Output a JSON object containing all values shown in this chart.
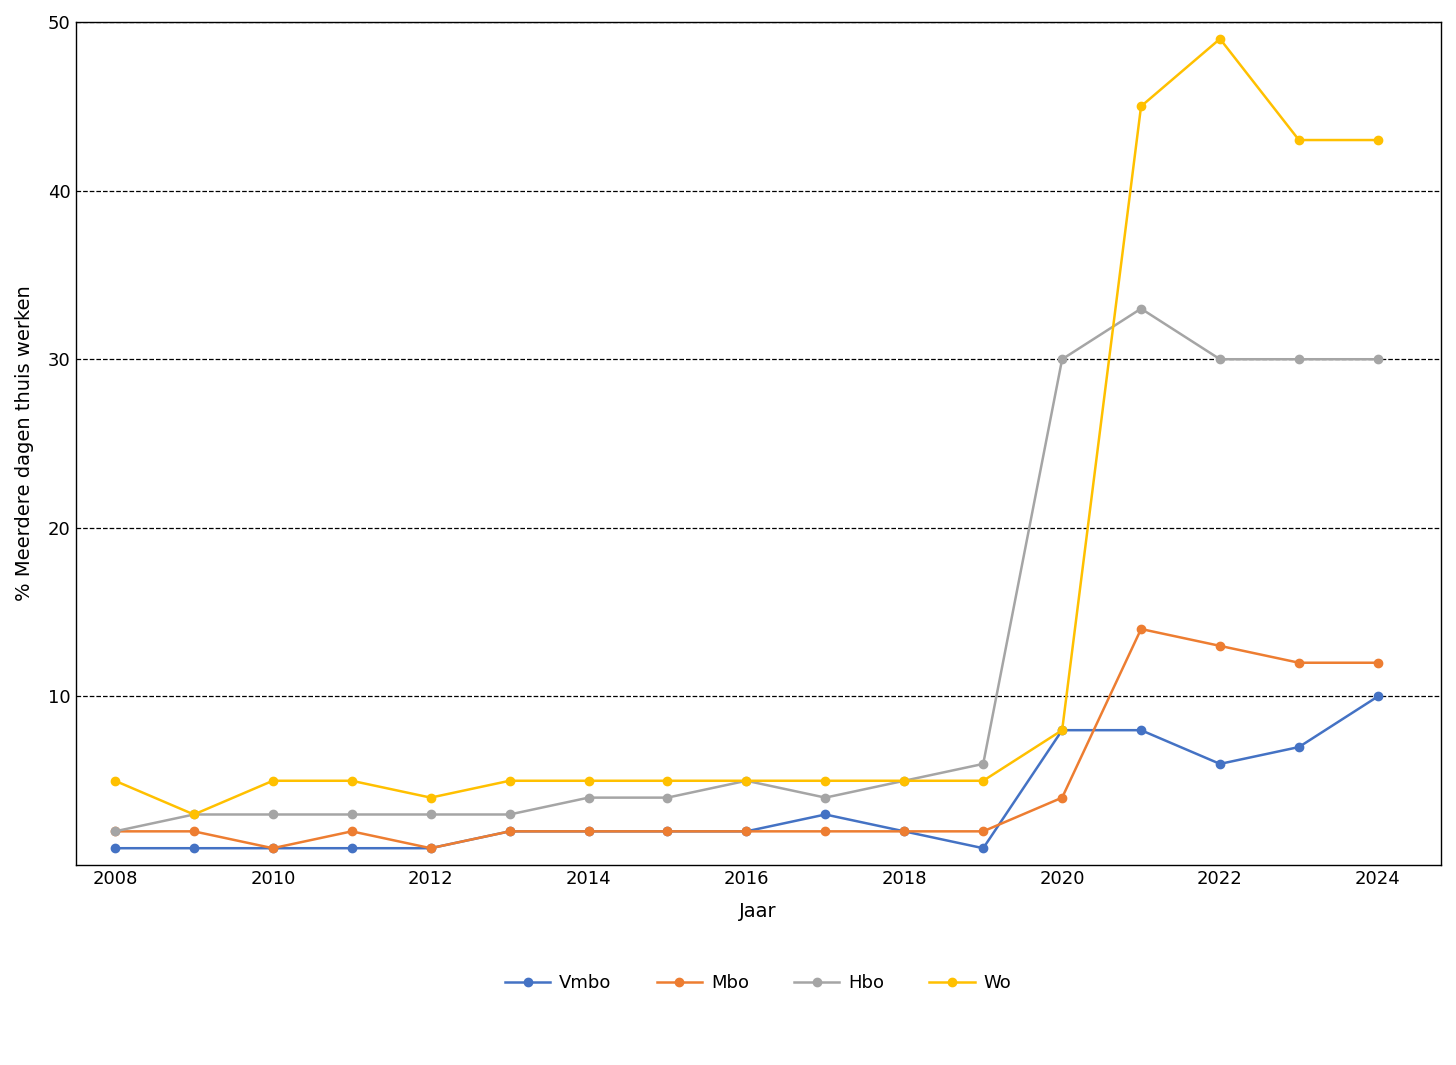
{
  "years": [
    2008,
    2009,
    2010,
    2011,
    2012,
    2013,
    2014,
    2015,
    2016,
    2017,
    2018,
    2019,
    2020,
    2021,
    2022,
    2023,
    2024
  ],
  "vmbo": [
    1,
    1,
    1,
    1,
    1,
    2,
    2,
    2,
    2,
    3,
    2,
    1,
    8,
    8,
    6,
    7,
    10
  ],
  "mbo": [
    2,
    2,
    1,
    2,
    1,
    2,
    2,
    2,
    2,
    2,
    2,
    2,
    4,
    14,
    13,
    12,
    12
  ],
  "hbo": [
    2,
    3,
    3,
    3,
    3,
    3,
    4,
    4,
    5,
    4,
    5,
    6,
    30,
    33,
    30,
    30,
    30
  ],
  "wo": [
    5,
    3,
    5,
    5,
    4,
    5,
    5,
    5,
    5,
    5,
    5,
    5,
    8,
    45,
    49,
    43,
    43
  ],
  "colors": {
    "vmbo": "#4472C4",
    "mbo": "#ED7D31",
    "hbo": "#A5A5A5",
    "wo": "#FFC000"
  },
  "labels": {
    "vmbo": "Vmbo",
    "mbo": "Mbo",
    "hbo": "Hbo",
    "wo": "Wo"
  },
  "xlabel": "Jaar",
  "ylabel": "% Meerdere dagen thuis werken",
  "ylim": [
    0,
    50
  ],
  "yticks": [
    10,
    20,
    30,
    40,
    50
  ],
  "xticks": [
    2008,
    2010,
    2012,
    2014,
    2016,
    2018,
    2020,
    2022,
    2024
  ],
  "grid_color": "#000000",
  "background_color": "#ffffff",
  "marker": "o",
  "markersize": 6,
  "linewidth": 1.8
}
